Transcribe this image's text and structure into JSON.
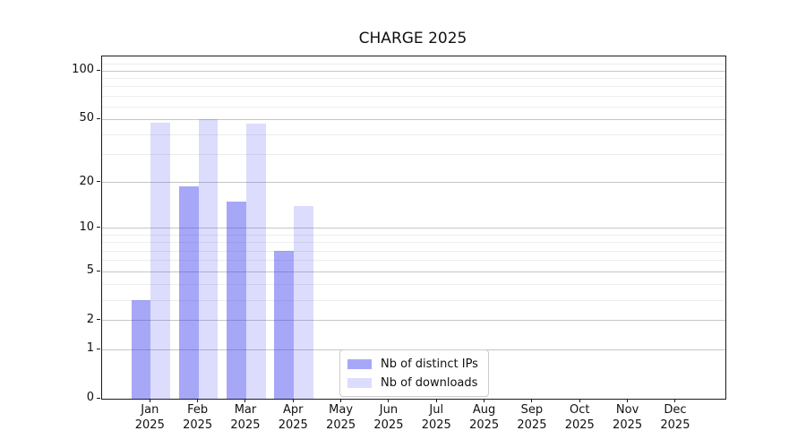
{
  "figure": {
    "title": "CHARGE 2025"
  },
  "chart_data": {
    "type": "bar",
    "title": "CHARGE 2025",
    "categories": [
      "Jan 2025",
      "Feb 2025",
      "Mar 2025",
      "Apr 2025",
      "May 2025",
      "Jun 2025",
      "Jul 2025",
      "Aug 2025",
      "Sep 2025",
      "Oct 2025",
      "Nov 2025",
      "Dec 2025"
    ],
    "x_tick_months": [
      "Jan",
      "Feb",
      "Mar",
      "Apr",
      "May",
      "Jun",
      "Jul",
      "Aug",
      "Sep",
      "Oct",
      "Nov",
      "Dec"
    ],
    "x_tick_year": "2025",
    "series": [
      {
        "name": "Nb of distinct IPs",
        "color": "rgba(60,60,240,0.45)",
        "values": [
          3,
          19,
          15,
          7,
          null,
          null,
          null,
          null,
          null,
          null,
          null,
          null
        ]
      },
      {
        "name": "Nb of downloads",
        "color": "rgba(60,60,240,0.18)",
        "values": [
          48,
          50,
          47,
          14,
          null,
          null,
          null,
          null,
          null,
          null,
          null,
          null
        ]
      }
    ],
    "xlabel": "",
    "ylabel": "",
    "y_scale": "log10(value+1)",
    "ylim": [
      0,
      123
    ],
    "y_ticks": [
      100,
      50,
      20,
      10,
      5,
      2,
      1,
      0
    ],
    "y_minor_gridlines": [
      120,
      110,
      90,
      80,
      70,
      60,
      40,
      30,
      9,
      8,
      7,
      6,
      4,
      3
    ],
    "grid": true,
    "legend_position": "inside lower-center",
    "colors": {
      "distinct_ips_bar": "rgba(60,60,240,0.45)",
      "downloads_bar": "rgba(60,60,240,0.18)",
      "major_gridline": "#c6c6c6",
      "minor_gridline": "#ededed",
      "axis_spine": "#1a1a1a"
    }
  }
}
